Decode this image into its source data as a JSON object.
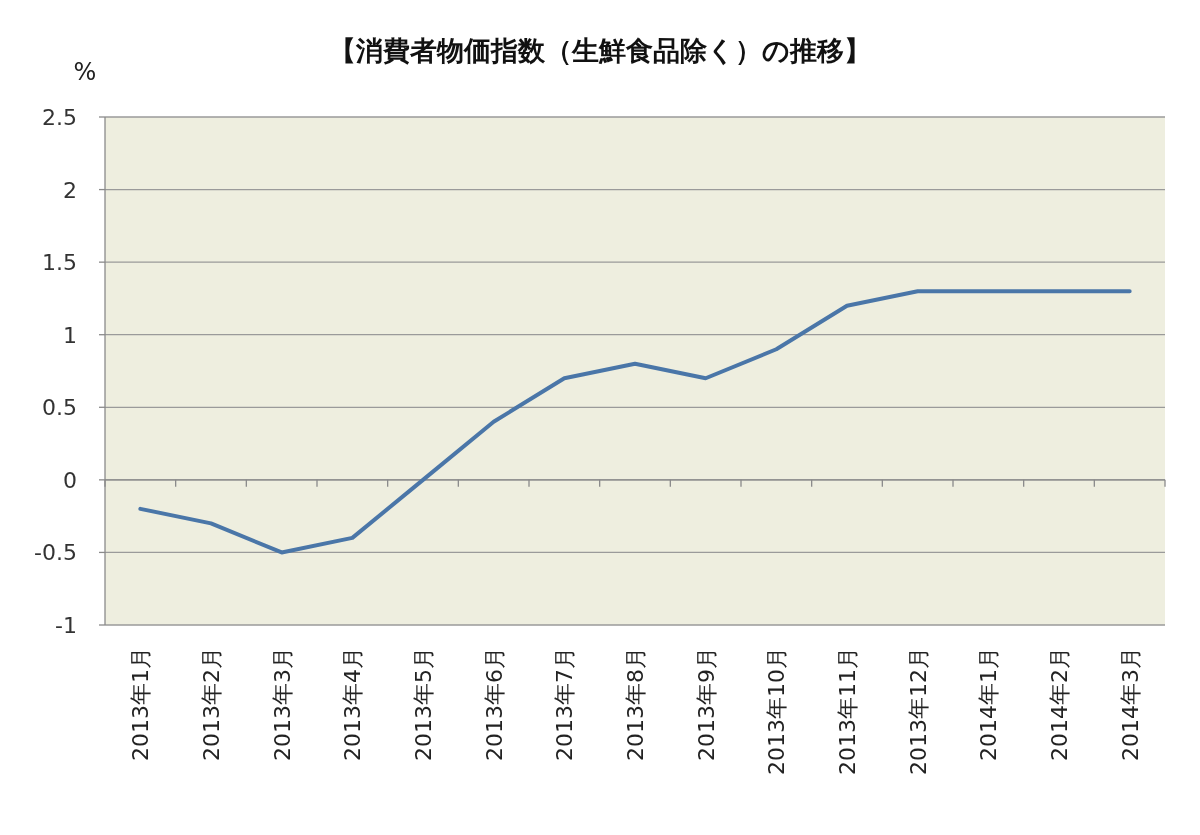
{
  "chart_data": {
    "type": "line",
    "title": "【消費者物価指数（生鮮食品除く）の推移】",
    "ylabel": "%",
    "categories": [
      "2013年1月",
      "2013年2月",
      "2013年3月",
      "2013年4月",
      "2013年5月",
      "2013年6月",
      "2013年7月",
      "2013年8月",
      "2013年9月",
      "2013年10月",
      "2013年11月",
      "2013年12月",
      "2014年1月",
      "2014年2月",
      "2014年3月"
    ],
    "series": [
      {
        "color": "#4a76a8",
        "values": [
          -0.2,
          -0.3,
          -0.5,
          -0.4,
          0.0,
          0.4,
          0.7,
          0.8,
          0.7,
          0.9,
          1.2,
          1.3,
          1.3,
          1.3,
          1.3
        ]
      }
    ],
    "ylim": [
      -1,
      2.5
    ],
    "yticks": [
      -1,
      -0.5,
      0,
      0.5,
      1,
      1.5,
      2,
      2.5
    ],
    "grid": "y",
    "line_style": "solid"
  }
}
